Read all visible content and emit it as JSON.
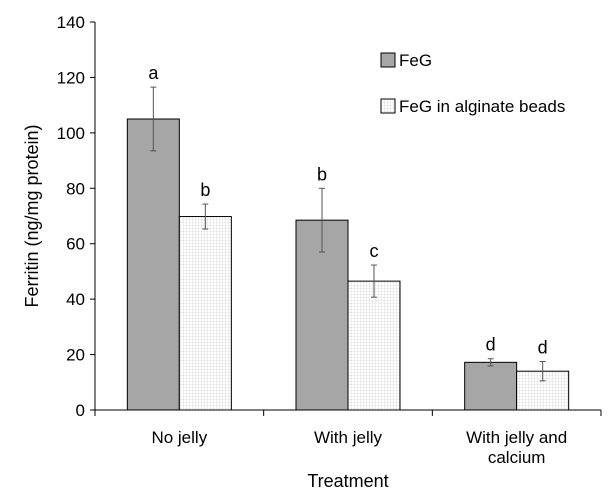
{
  "chart_data": {
    "type": "bar",
    "title": "",
    "xlabel": "Treatment",
    "ylabel": "Ferritin (ng/mg protein)",
    "ylim": [
      0,
      140
    ],
    "yticks": [
      0,
      20,
      40,
      60,
      80,
      100,
      120,
      140
    ],
    "categories": [
      [
        "No jelly"
      ],
      [
        "With jelly"
      ],
      [
        "With jelly and",
        "calcium"
      ]
    ],
    "series": [
      {
        "name": "FeG",
        "fill": "#a6a6a6",
        "pattern": "solid",
        "values": [
          105,
          68.5,
          17.2
        ],
        "errors": [
          11.5,
          11.5,
          1.3
        ],
        "labels": [
          "a",
          "b",
          "d"
        ]
      },
      {
        "name": "FeG in alginate beads",
        "fill": "#ffffff",
        "pattern": "grid",
        "values": [
          69.8,
          46.5,
          14
        ],
        "errors": [
          4.5,
          5.8,
          3.5
        ],
        "labels": [
          "b",
          "c",
          "d"
        ]
      }
    ],
    "legend": {
      "position": "top-right"
    },
    "grid": false
  }
}
